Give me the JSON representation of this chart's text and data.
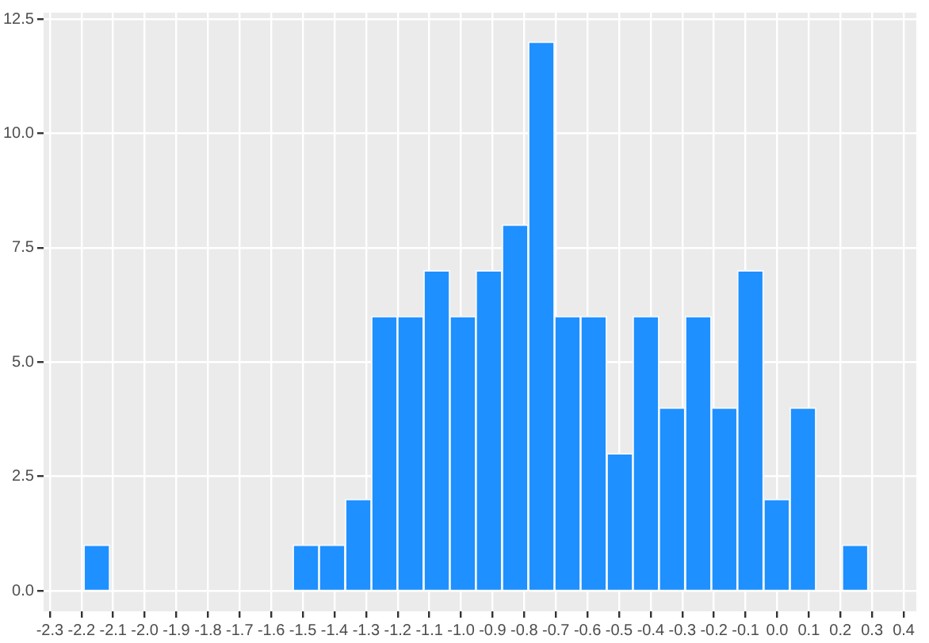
{
  "chart_data": {
    "type": "histogram",
    "color": "#1e90ff",
    "bins": [
      -2.193,
      -2.11,
      -2.027,
      -1.945,
      -1.862,
      -1.78,
      -1.697,
      -1.614,
      -1.531,
      -1.449,
      -1.366,
      -1.283,
      -1.201,
      -1.118,
      -1.035,
      -0.953,
      -0.87,
      -0.787,
      -0.704,
      -0.622,
      -0.539,
      -0.456,
      -0.374,
      -0.291,
      -0.208,
      -0.126,
      -0.043,
      0.04,
      0.123,
      0.205,
      0.288
    ],
    "values": [
      1,
      0,
      0,
      0,
      0,
      0,
      0,
      0,
      1,
      1,
      2,
      6,
      6,
      7,
      6,
      7,
      8,
      12,
      6,
      6,
      3,
      6,
      4,
      6,
      4,
      7,
      2,
      4,
      0,
      1
    ],
    "xlim": [
      -2.32,
      0.44
    ],
    "xticks": [
      -2.3,
      -2.2,
      -2.1,
      {
        "value": -2.0,
        "label": "-2.0"
      },
      -1.9,
      -1.8,
      -1.7,
      -1.6,
      -1.5,
      -1.4,
      -1.3,
      -1.2,
      -1.1,
      {
        "value": -1.0,
        "label": "-1.0"
      },
      -0.9,
      -0.8,
      -0.7,
      -0.6,
      -0.5,
      -0.4,
      -0.3,
      -0.2,
      -0.1,
      {
        "value": 0,
        "label": "0.0"
      },
      0.1,
      0.2,
      0.3,
      0.4
    ],
    "ylim": [
      -0.45,
      12.64
    ],
    "yticks": [
      {
        "value": 0,
        "label": "0.0"
      },
      2.5,
      {
        "value": 5,
        "label": "5.0"
      },
      7.5,
      {
        "value": 10,
        "label": "10.0"
      },
      12.5
    ],
    "grid": true
  }
}
